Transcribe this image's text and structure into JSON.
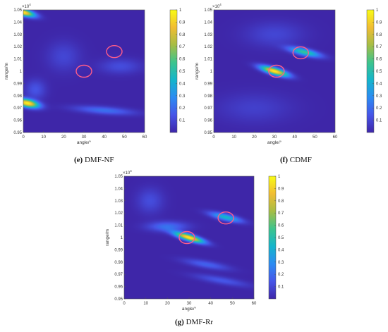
{
  "colors": {
    "colormap": [
      "#3e26a8",
      "#4655e8",
      "#2c8bf2",
      "#14b5cb",
      "#3ec48d",
      "#a6bd45",
      "#f1bd33",
      "#f9fb15"
    ],
    "marker_circle": "#ff5c8a"
  },
  "chart_data": [
    {
      "type": "heatmap",
      "panel_letter": "(e)",
      "panel_name": "DMF-NF",
      "xlabel": "angle/°",
      "ylabel": "range/m",
      "xlim": [
        0,
        60
      ],
      "ylim": [
        0.95,
        1.05
      ],
      "y_exponent": "×10^4",
      "x_ticks": [
        "0",
        "10",
        "20",
        "30",
        "40",
        "50",
        "60"
      ],
      "y_ticks": [
        "0.95",
        "0.96",
        "0.97",
        "0.98",
        "0.99",
        "1",
        "1.01",
        "1.02",
        "1.03",
        "1.04",
        "1.05"
      ],
      "colorbar_ticks": [
        "0.1",
        "0.2",
        "0.3",
        "0.4",
        "0.5",
        "0.6",
        "0.7",
        "0.8",
        "0.9",
        "1"
      ],
      "clim": [
        0,
        1
      ],
      "peaks": [
        {
          "angle": 0,
          "range": 1.048,
          "value": 1.0
        },
        {
          "angle": 2,
          "range": 0.974,
          "value": 1.0
        },
        {
          "angle": 45,
          "range": 0.966,
          "value": 0.18
        }
      ],
      "marked_targets": [
        {
          "angle": 30,
          "range": 1.0
        },
        {
          "angle": 45,
          "range": 1.016
        }
      ]
    },
    {
      "type": "heatmap",
      "panel_letter": "(f)",
      "panel_name": "CDMF",
      "xlabel": "angle/°",
      "ylabel": "range/m",
      "xlim": [
        0,
        60
      ],
      "ylim": [
        0.95,
        1.05
      ],
      "y_exponent": "×10^4",
      "x_ticks": [
        "0",
        "10",
        "20",
        "30",
        "40",
        "50",
        "60"
      ],
      "y_ticks": [
        "0.95",
        "0.96",
        "0.97",
        "0.98",
        "0.99",
        "1",
        "1.01",
        "1.02",
        "1.03",
        "1.04",
        "1.05"
      ],
      "colorbar_ticks": [
        "0.1",
        "0.2",
        "0.3",
        "0.4",
        "0.5",
        "0.6",
        "0.7",
        "0.8",
        "0.9",
        "1"
      ],
      "clim": [
        0,
        1
      ],
      "peaks": [
        {
          "angle": 30,
          "range": 1.0,
          "value": 1.0
        },
        {
          "angle": 44,
          "range": 1.015,
          "value": 0.55
        }
      ],
      "marked_targets": [
        {
          "angle": 31,
          "range": 1.0
        },
        {
          "angle": 43,
          "range": 1.015
        }
      ]
    },
    {
      "type": "heatmap",
      "panel_letter": "(g)",
      "panel_name": "DMF-Rr",
      "xlabel": "angle/°",
      "ylabel": "range/m",
      "xlim": [
        0,
        60
      ],
      "ylim": [
        0.95,
        1.05
      ],
      "y_exponent": "×10^4",
      "x_ticks": [
        "0",
        "10",
        "20",
        "30",
        "40",
        "50",
        "60"
      ],
      "y_ticks": [
        "0.95",
        "0.96",
        "0.97",
        "0.98",
        "0.99",
        "1",
        "1.01",
        "1.02",
        "1.03",
        "1.04",
        "1.05"
      ],
      "colorbar_ticks": [
        "0.1",
        "0.2",
        "0.3",
        "0.4",
        "0.5",
        "0.6",
        "0.7",
        "0.8",
        "0.9",
        "1"
      ],
      "clim": [
        0,
        1
      ],
      "peaks": [
        {
          "angle": 30,
          "range": 1.0,
          "value": 1.0
        },
        {
          "angle": 47,
          "range": 1.016,
          "value": 0.45
        }
      ],
      "marked_targets": [
        {
          "angle": 29,
          "range": 1.0
        },
        {
          "angle": 47,
          "range": 1.016
        }
      ]
    }
  ]
}
